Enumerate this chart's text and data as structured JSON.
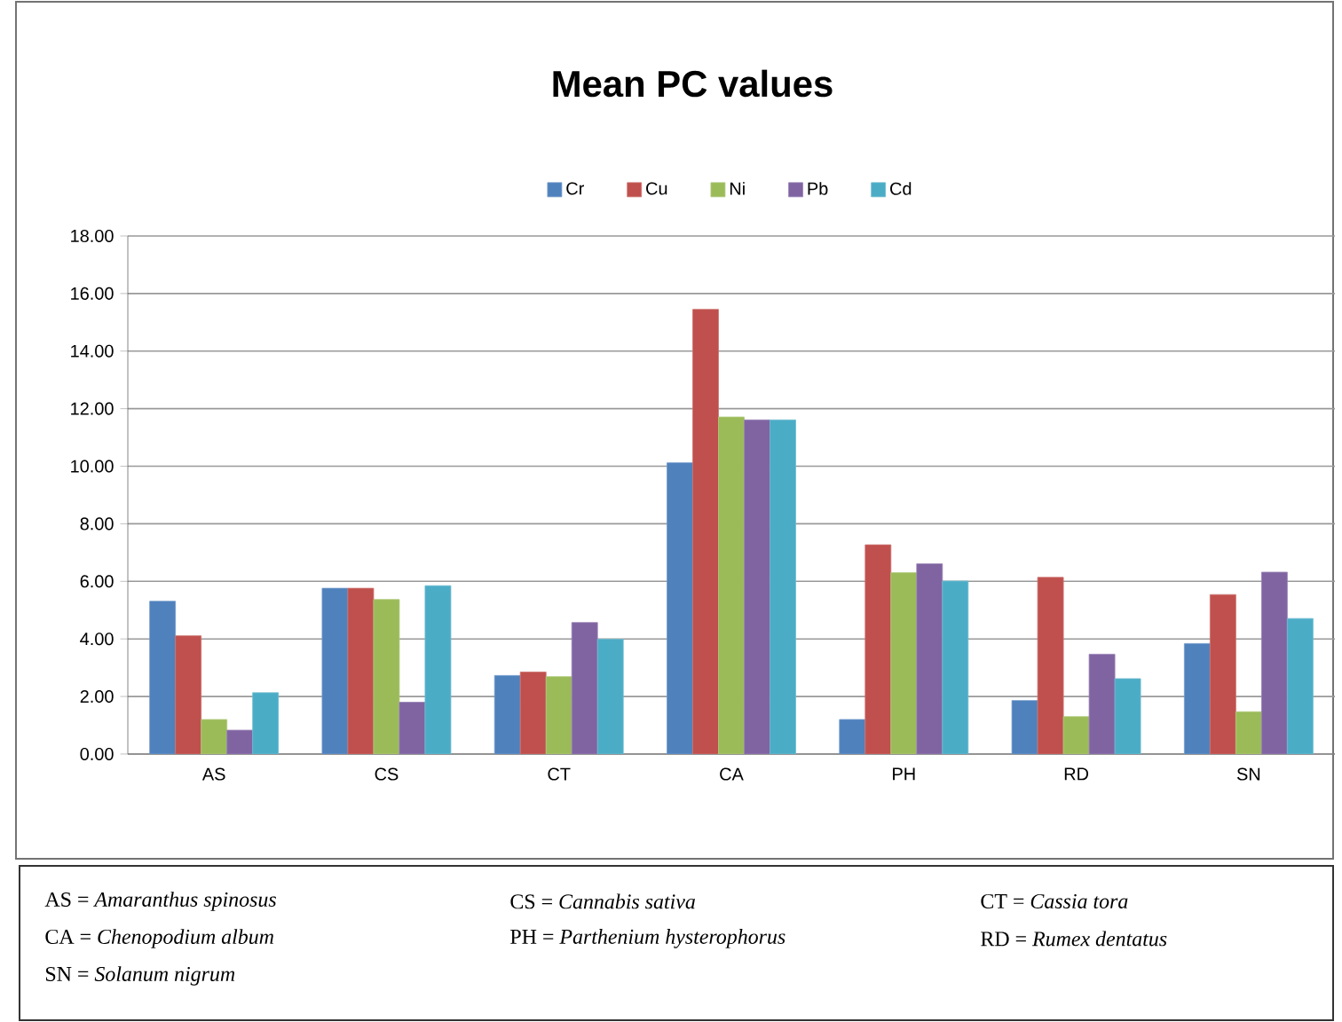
{
  "chart_data": {
    "type": "bar",
    "title": "Mean PC values",
    "categories": [
      "AS",
      "CS",
      "CT",
      "CA",
      "PH",
      "RD",
      "SN"
    ],
    "series": [
      {
        "name": "Cr",
        "color": "#4f81bd",
        "values": [
          5.31,
          5.76,
          2.73,
          10.12,
          1.2,
          1.86,
          3.84
        ]
      },
      {
        "name": "Cu",
        "color": "#c0504d",
        "values": [
          4.11,
          5.76,
          2.85,
          15.45,
          7.27,
          6.14,
          5.54
        ]
      },
      {
        "name": "Ni",
        "color": "#9bbb59",
        "values": [
          1.2,
          5.37,
          2.69,
          11.71,
          6.3,
          1.3,
          1.47
        ]
      },
      {
        "name": "Pb",
        "color": "#8064a2",
        "values": [
          0.83,
          1.8,
          4.57,
          11.61,
          6.61,
          3.47,
          6.32
        ]
      },
      {
        "name": "Cd",
        "color": "#4bacc6",
        "values": [
          2.13,
          5.85,
          3.99,
          11.61,
          6.01,
          2.62,
          4.71
        ]
      }
    ],
    "ylim": [
      0,
      18
    ],
    "yticks": [
      {
        "value": 0,
        "label": "0.00"
      },
      {
        "value": 2,
        "label": "2.00"
      },
      {
        "value": 4,
        "label": "4.00"
      },
      {
        "value": 6,
        "label": "6.00"
      },
      {
        "value": 8,
        "label": "8.00"
      },
      {
        "value": 10,
        "label": "10.00"
      },
      {
        "value": 12,
        "label": "12.00"
      },
      {
        "value": 14,
        "label": "14.00"
      },
      {
        "value": 16,
        "label": "16.00"
      },
      {
        "value": 18,
        "label": "18.00"
      }
    ],
    "grid": "y",
    "legend": "top",
    "annotations": [
      "AS = *Amaranthus spinosus*",
      "CS = *Cannabis sativa*",
      "CT = *Cassia tora*",
      "CA = *Chenopodium album*",
      "PH = *Parthenium hysterophorus*",
      "RD = *Rumex dentatus*",
      "SN = *Solanum nigrum*"
    ]
  }
}
